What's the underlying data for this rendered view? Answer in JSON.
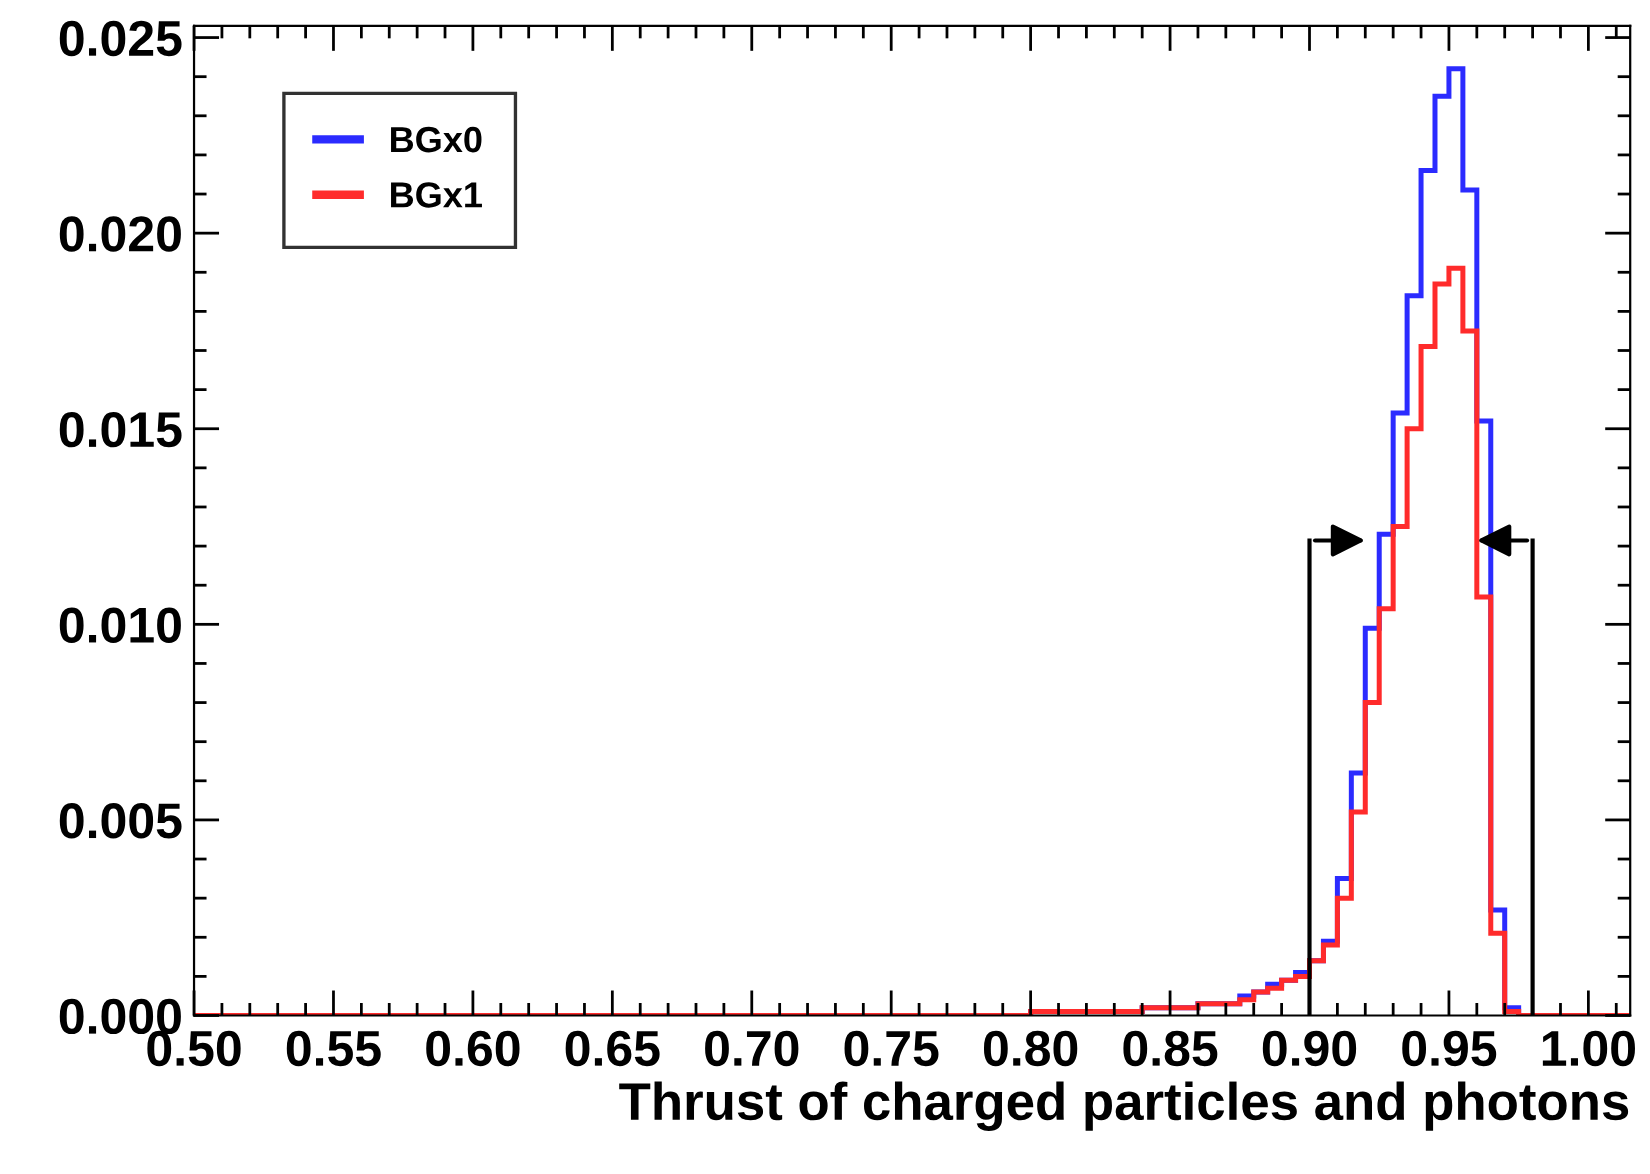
{
  "chart_data": {
    "type": "histogram",
    "xlabel": "Thrust of charged particles and photons",
    "bins": [
      0.5,
      0.505,
      0.51,
      0.515,
      0.52,
      0.525,
      0.53,
      0.535,
      0.54,
      0.545,
      0.55,
      0.555,
      0.56,
      0.565,
      0.57,
      0.575,
      0.58,
      0.585,
      0.59,
      0.595,
      0.6,
      0.605,
      0.61,
      0.615,
      0.62,
      0.625,
      0.63,
      0.635,
      0.64,
      0.645,
      0.65,
      0.655,
      0.66,
      0.665,
      0.67,
      0.675,
      0.68,
      0.685,
      0.69,
      0.695,
      0.7,
      0.705,
      0.71,
      0.715,
      0.72,
      0.725,
      0.73,
      0.735,
      0.74,
      0.745,
      0.75,
      0.755,
      0.76,
      0.765,
      0.77,
      0.775,
      0.78,
      0.785,
      0.79,
      0.795,
      0.8,
      0.805,
      0.81,
      0.815,
      0.82,
      0.825,
      0.83,
      0.835,
      0.84,
      0.845,
      0.85,
      0.855,
      0.86,
      0.865,
      0.87,
      0.875,
      0.88,
      0.885,
      0.89,
      0.895,
      0.9,
      0.905,
      0.91,
      0.915,
      0.92,
      0.925,
      0.93,
      0.935,
      0.94,
      0.945,
      0.95,
      0.955,
      0.96,
      0.965,
      0.97,
      0.975,
      0.98,
      0.985,
      0.99,
      0.995,
      1.0,
      1.005,
      1.01,
      1.015
    ],
    "series": [
      {
        "name": "BGx0",
        "color": "#2b2bff",
        "values": [
          0,
          0,
          0,
          0,
          0,
          0,
          0,
          0,
          0,
          0,
          0,
          0,
          0,
          0,
          0,
          0,
          0,
          0,
          0,
          0,
          0,
          0,
          0,
          0,
          0,
          0,
          0,
          0,
          0,
          0,
          0,
          0,
          0,
          0,
          0,
          0,
          0,
          0,
          0,
          0,
          0,
          0,
          0,
          0,
          0,
          0,
          0,
          0,
          0,
          0,
          0,
          0,
          0,
          0,
          0,
          0,
          0,
          0,
          0,
          0,
          0.0001,
          0.0001,
          0.0001,
          0.0001,
          0.0001,
          0.0001,
          0.0001,
          0.0001,
          0.0002,
          0.0002,
          0.0002,
          0.0002,
          0.0003,
          0.0003,
          0.0003,
          0.0005,
          0.0006,
          0.0008,
          0.0009,
          0.0011,
          0.0014,
          0.0019,
          0.0035,
          0.0062,
          0.0099,
          0.0123,
          0.0154,
          0.0184,
          0.0216,
          0.0235,
          0.0242,
          0.0211,
          0.0152,
          0.0027,
          0.0002,
          0,
          0,
          0,
          0,
          0,
          0,
          0,
          0
        ]
      },
      {
        "name": "BGx1",
        "color": "#ff2b2b",
        "values": [
          0,
          0,
          0,
          0,
          0,
          0,
          0,
          0,
          0,
          0,
          0,
          0,
          0,
          0,
          0,
          0,
          0,
          0,
          0,
          0,
          0,
          0,
          0,
          0,
          0,
          0,
          0,
          0,
          0,
          0,
          0,
          0,
          0,
          0,
          0,
          0,
          0,
          0,
          0,
          0,
          0,
          0,
          0,
          0,
          0,
          0,
          0,
          0,
          0,
          0,
          0,
          0,
          0,
          0,
          0,
          0,
          0,
          0,
          0,
          0,
          0.0001,
          0.0001,
          0.0001,
          0.0001,
          0.0001,
          0.0001,
          0.0001,
          0.0001,
          0.0002,
          0.0002,
          0.0002,
          0.0002,
          0.0003,
          0.0003,
          0.0003,
          0.0004,
          0.0006,
          0.0007,
          0.0009,
          0.001,
          0.0014,
          0.0018,
          0.003,
          0.0052,
          0.008,
          0.0104,
          0.0125,
          0.015,
          0.0171,
          0.0187,
          0.0191,
          0.0175,
          0.0107,
          0.0021,
          0.0001,
          0,
          0,
          0,
          0,
          0,
          0,
          0,
          0
        ]
      }
    ],
    "xlim": [
      0.5,
      1.015
    ],
    "xticks": [
      {
        "value": 0.5,
        "label": "0.50"
      },
      {
        "value": 0.55,
        "label": "0.55"
      },
      {
        "value": 0.6,
        "label": "0.60"
      },
      {
        "value": 0.65,
        "label": "0.65"
      },
      {
        "value": 0.7,
        "label": "0.70"
      },
      {
        "value": 0.75,
        "label": "0.75"
      },
      {
        "value": 0.8,
        "label": "0.80"
      },
      {
        "value": 0.85,
        "label": "0.85"
      },
      {
        "value": 0.9,
        "label": "0.90"
      },
      {
        "value": 0.95,
        "label": "0.95"
      },
      {
        "value": 1.0,
        "label": "1.00"
      }
    ],
    "ylim": [
      0,
      0.0253
    ],
    "yticks": [
      {
        "value": 0,
        "label": "0.000"
      },
      {
        "value": 0.005,
        "label": "0.005"
      },
      {
        "value": 0.01,
        "label": "0.010"
      },
      {
        "value": 0.015,
        "label": "0.015"
      },
      {
        "value": 0.02,
        "label": "0.020"
      },
      {
        "value": 0.025,
        "label": "0.025"
      }
    ],
    "ref_lines": [
      {
        "axis": "x",
        "value": 0.9,
        "color": "#000000"
      },
      {
        "axis": "x",
        "value": 0.98,
        "color": "#000000"
      }
    ],
    "grid": false,
    "legend": "top left"
  }
}
